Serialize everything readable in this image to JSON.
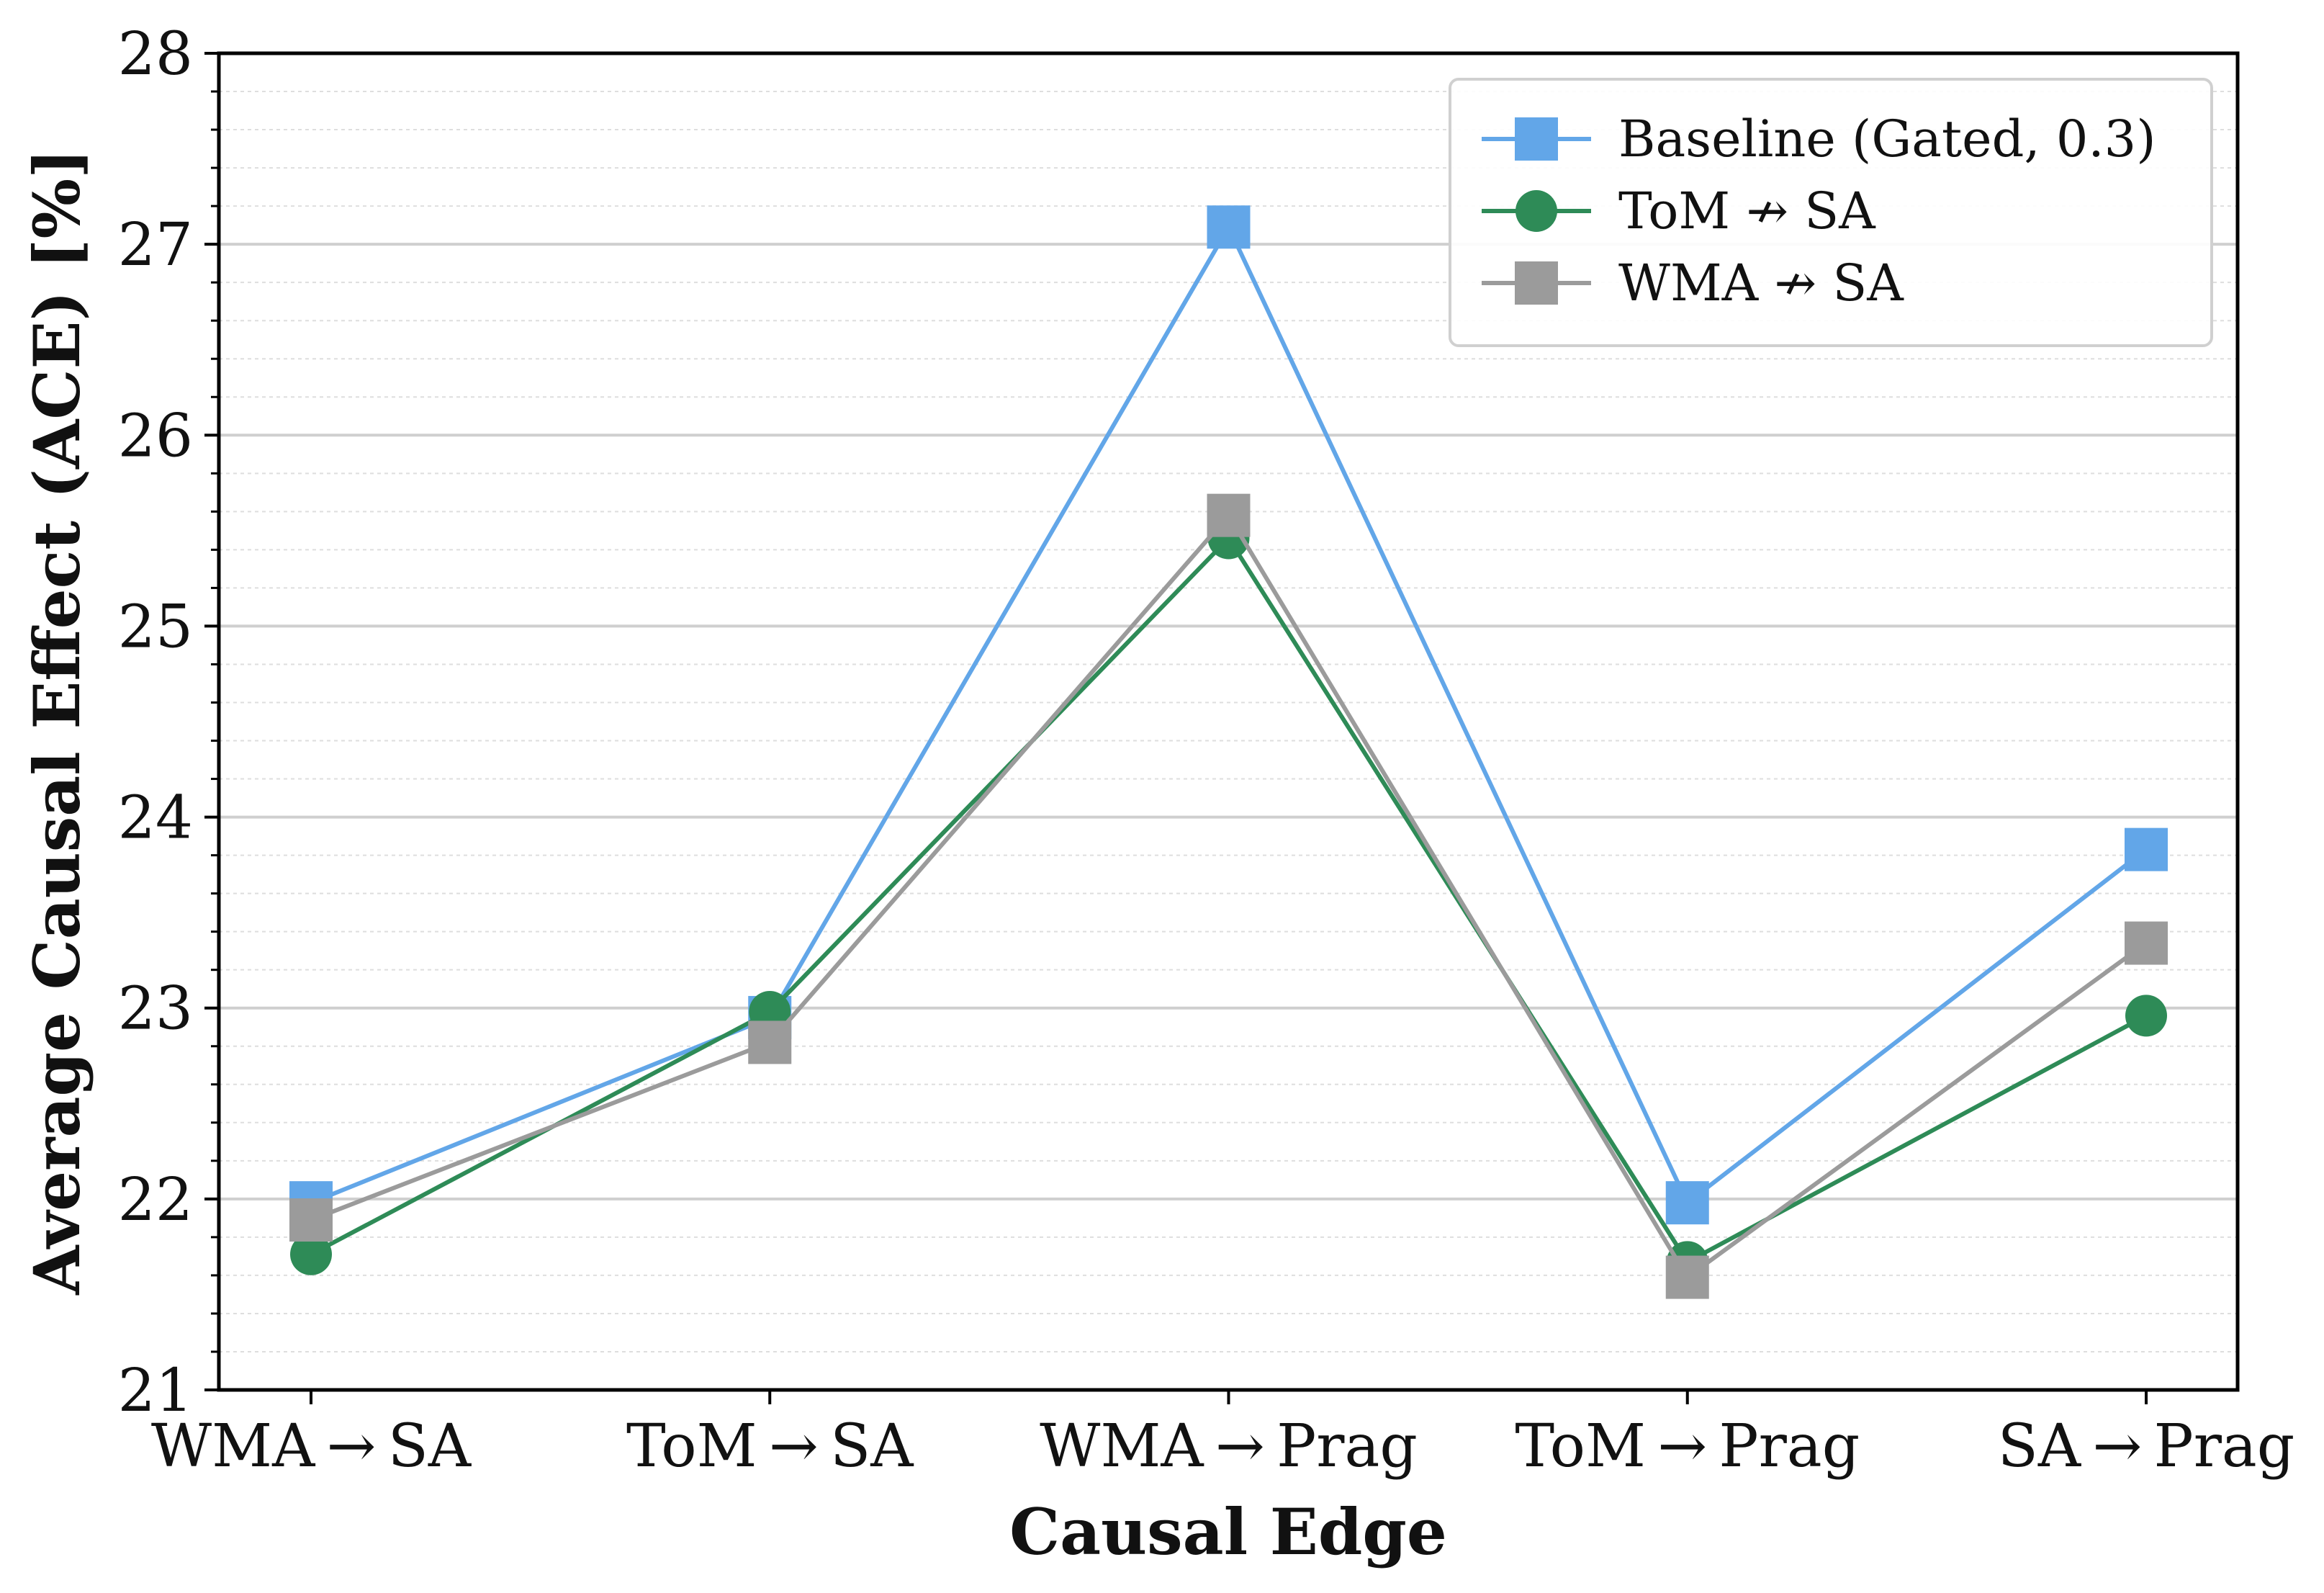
{
  "chart_data": {
    "type": "line",
    "xlabel": "Causal Edge",
    "ylabel": "Average Causal Effect (ACE) [%]",
    "ylim": [
      21,
      28
    ],
    "yticks": [
      "21",
      "22",
      "23",
      "24",
      "25",
      "26",
      "27",
      "28"
    ],
    "categories": [
      "WMA → SA",
      "ToM → SA",
      "WMA → Prag",
      "ToM → Prag",
      "SA → Prag"
    ],
    "grid": "horizontal major + minor",
    "legend_position": "top-right",
    "series": [
      {
        "name": "Baseline (Gated, 0.3)",
        "marker": "square",
        "color": "#62a6e8",
        "values": [
          21.98,
          22.95,
          27.09,
          21.98,
          23.83
        ]
      },
      {
        "name": "ToM ↛ SA",
        "marker": "circle",
        "color": "#2e8b57",
        "values": [
          21.71,
          22.98,
          25.46,
          21.67,
          22.96
        ]
      },
      {
        "name": "WMA ↛ SA",
        "marker": "square",
        "color": "#9b9b9b",
        "values": [
          21.89,
          22.82,
          25.58,
          21.59,
          23.34
        ]
      }
    ]
  }
}
